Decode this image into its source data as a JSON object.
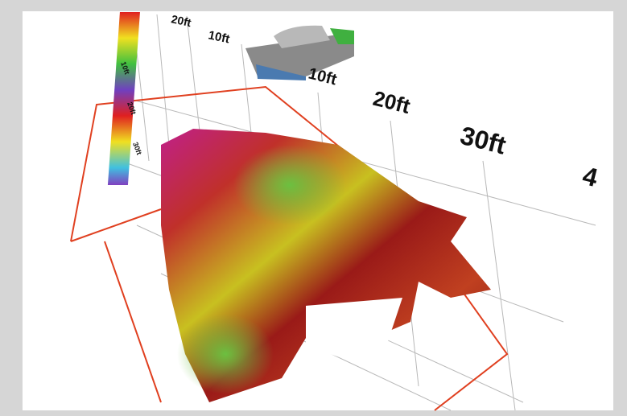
{
  "depth_scale_labels": [
    "10ft",
    "20ft",
    "30ft"
  ],
  "axis_labels": [
    "20ft",
    "10ft",
    "10ft",
    "20ft",
    "30ft",
    "4"
  ]
}
